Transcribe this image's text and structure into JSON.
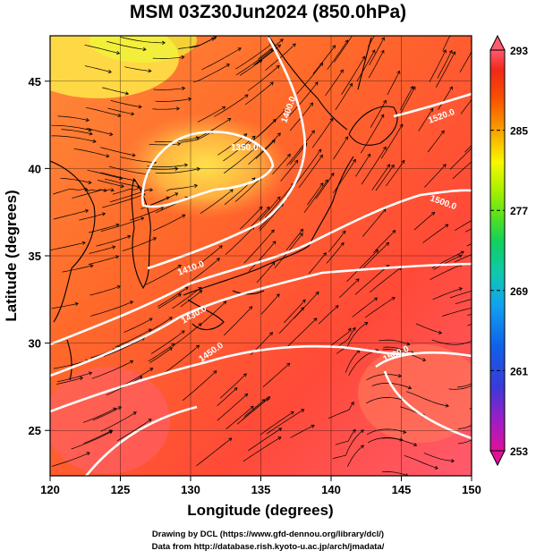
{
  "title": "MSM 03Z30Jun2024 (850.0hPa)",
  "x_axis": {
    "label": "Longitude (degrees)",
    "ticks": [
      120,
      125,
      130,
      135,
      140,
      145,
      150
    ],
    "range": [
      120,
      150
    ]
  },
  "y_axis": {
    "label": "Latitude (degrees)",
    "ticks": [
      25,
      30,
      35,
      40,
      45
    ],
    "range": [
      22.4,
      47.6
    ]
  },
  "colorbar": {
    "ticks": [
      293,
      285,
      277,
      269,
      261,
      253
    ],
    "range": [
      253,
      293
    ],
    "colors": [
      "#e0109a",
      "#9a1ec8",
      "#3a3ad8",
      "#1060e8",
      "#10a0f0",
      "#10c8b0",
      "#10d060",
      "#50e020",
      "#a8f000",
      "#f8f800",
      "#f8a000",
      "#f85000",
      "#f02818",
      "#ff5a6e"
    ]
  },
  "contours": {
    "color": "#ffffff",
    "labels": [
      "1350.0",
      "1400.0",
      "1410.0",
      "1430.0",
      "1450.0",
      "1500.0",
      "1520.0",
      "1560.0"
    ]
  },
  "field_colors": [
    "#ff9a4a",
    "#ff6a2a",
    "#ff3c28",
    "#ff5a6e",
    "#ffd848",
    "#f0ff40"
  ],
  "credits": [
    "Drawing by DCL (https://www.gfd-dennou.org/library/dcl/)",
    "Data from http://database.rish.kyoto-u.ac.jp/arch/jmadata/"
  ]
}
